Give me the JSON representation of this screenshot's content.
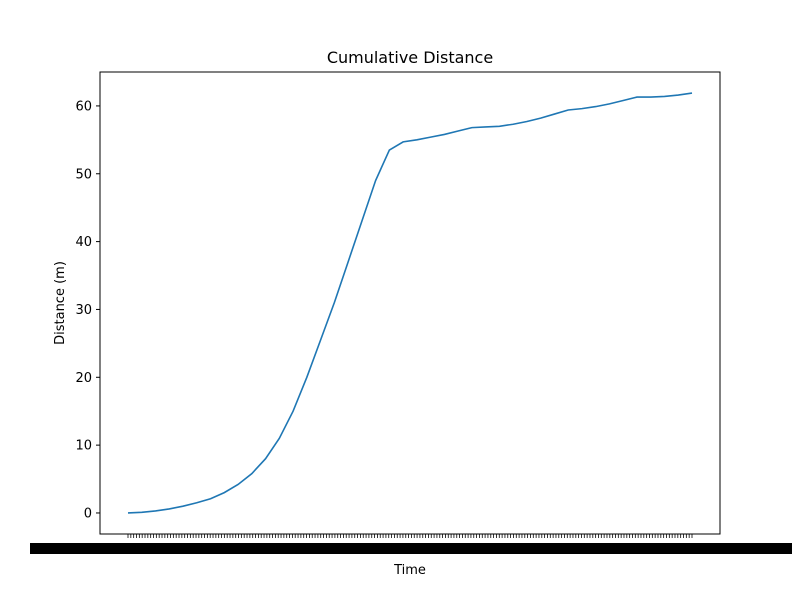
{
  "chart_data": {
    "type": "line",
    "title": "Cumulative Distance",
    "xlabel": "Time",
    "ylabel": "Distance (m)",
    "ylim": [
      -3.1,
      65
    ],
    "yticks": [
      0,
      10,
      20,
      30,
      40,
      50,
      60
    ],
    "grid": false,
    "line_color": "#1f77b4",
    "x_tick_count": 200,
    "series": [
      {
        "values": [
          0.0,
          0.1,
          0.3,
          0.6,
          1.0,
          1.5,
          2.1,
          3.0,
          4.2,
          5.8,
          8.0,
          11.0,
          15.0,
          20.0,
          25.5,
          31.0,
          37.0,
          43.0,
          49.0,
          53.5,
          54.7,
          55.0,
          55.4,
          55.8,
          56.3,
          56.8,
          56.9,
          57.0,
          57.3,
          57.7,
          58.2,
          58.8,
          59.4,
          59.6,
          59.9,
          60.3,
          60.8,
          61.3,
          61.3,
          61.4,
          61.6,
          61.9
        ]
      }
    ]
  }
}
